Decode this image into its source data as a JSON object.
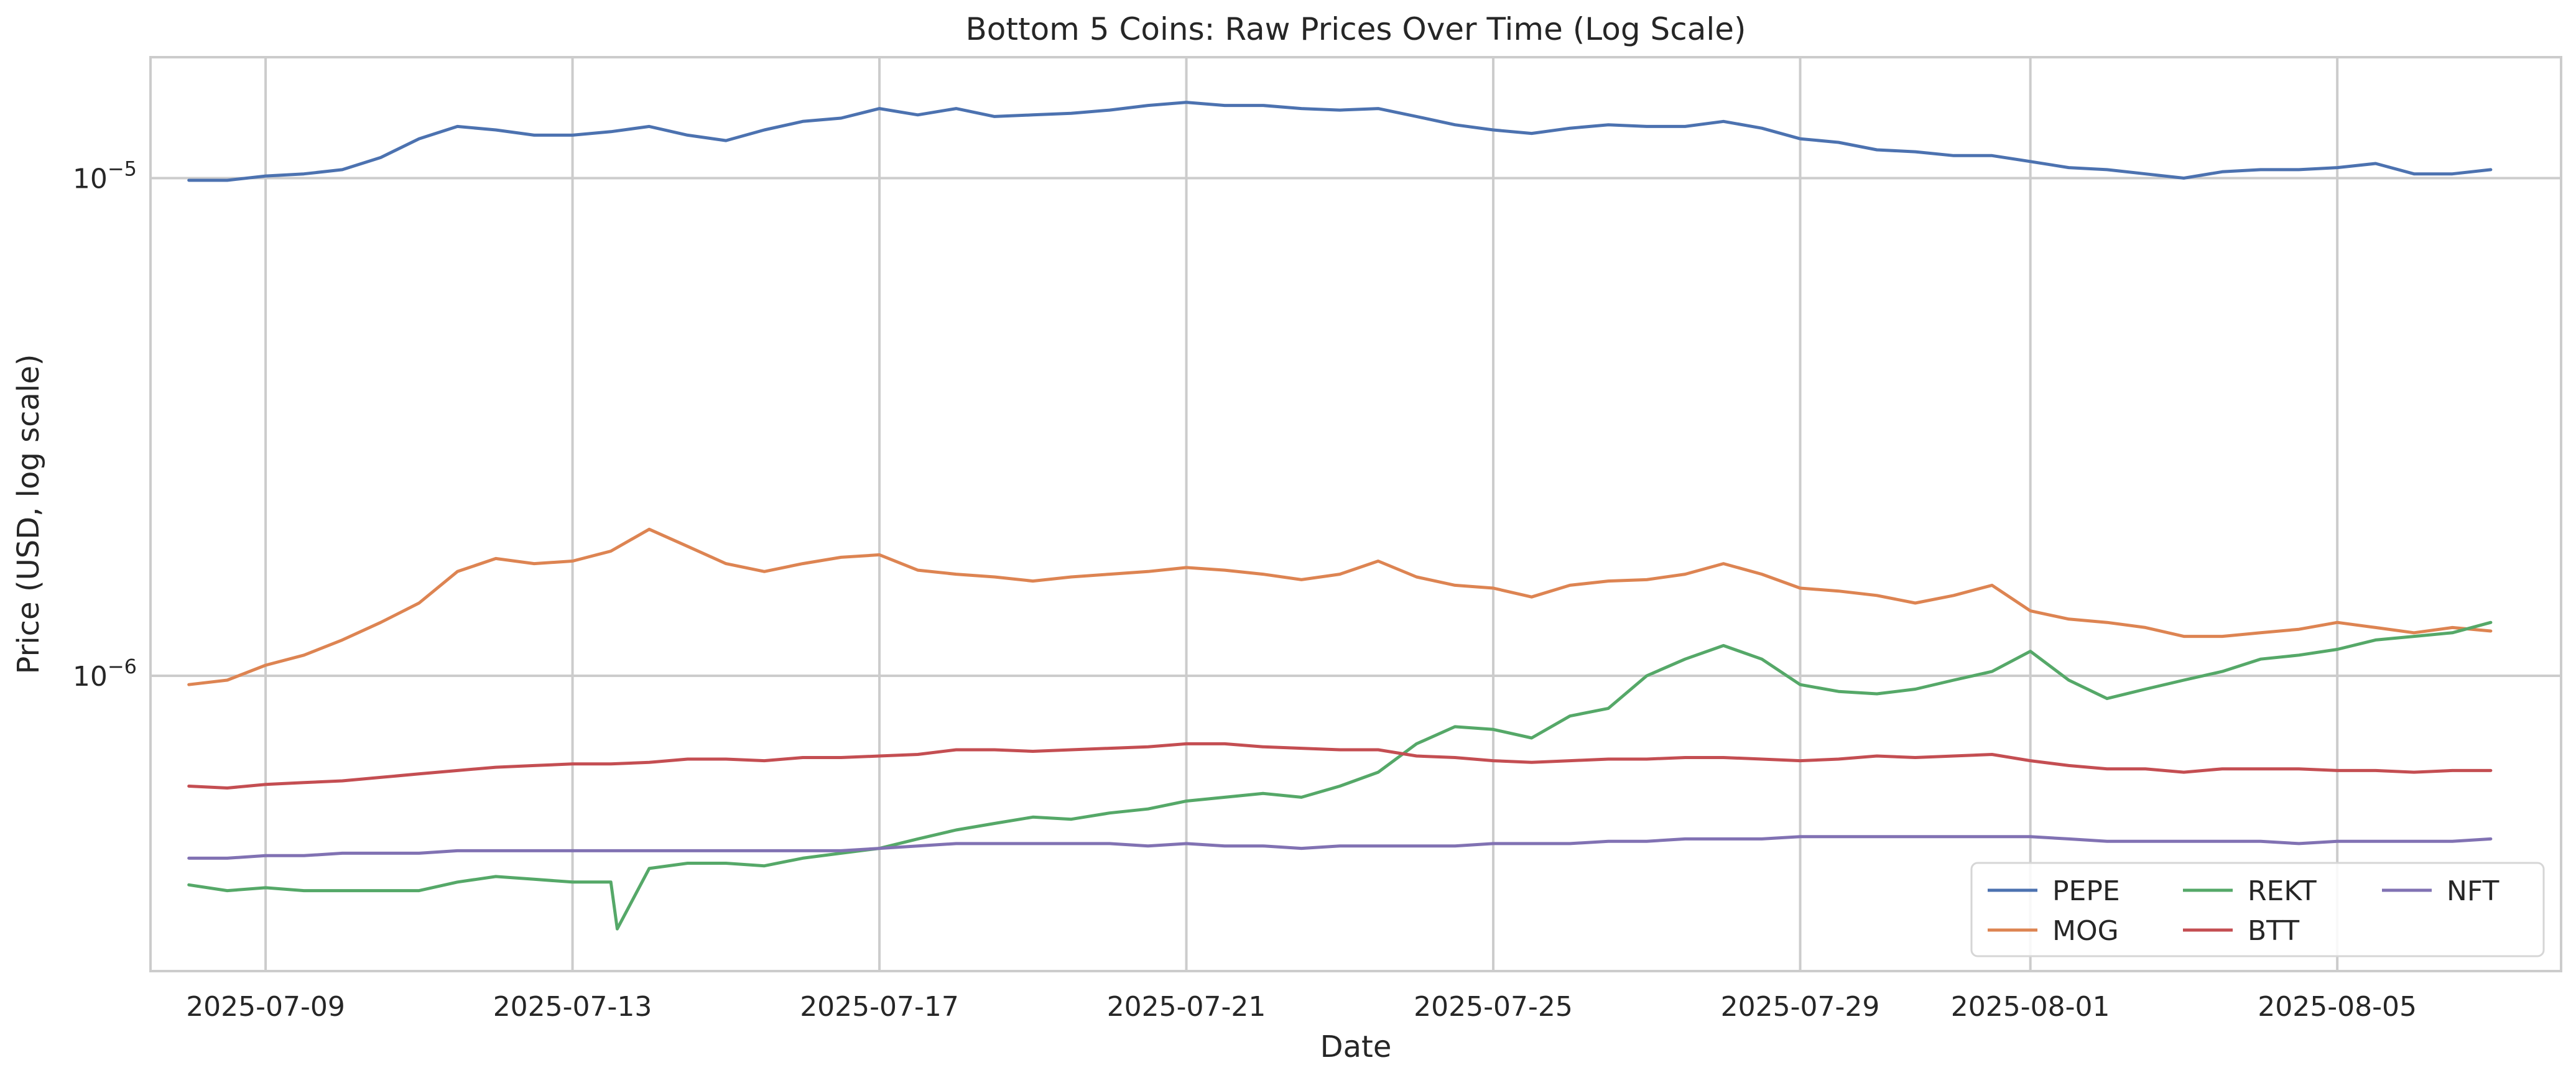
{
  "chart_data": {
    "type": "line",
    "title": "Bottom 5 Coins: Raw Prices Over Time (Log Scale)",
    "xlabel": "Date",
    "ylabel": "Price (USD, log scale)",
    "y_scale": "log",
    "ylim": [
      2.55e-07,
      1.75e-05
    ],
    "xlim": [
      "2025-07-07T12:00",
      "2025-08-07T22:00"
    ],
    "grid": true,
    "legend_position": "lower-right",
    "legend_columns": 3,
    "x_ticks": [
      {
        "date": "2025-07-09",
        "label": "2025-07-09"
      },
      {
        "date": "2025-07-13",
        "label": "2025-07-13"
      },
      {
        "date": "2025-07-17",
        "label": "2025-07-17"
      },
      {
        "date": "2025-07-21",
        "label": "2025-07-21"
      },
      {
        "date": "2025-07-25",
        "label": "2025-07-25"
      },
      {
        "date": "2025-07-29",
        "label": "2025-07-29"
      },
      {
        "date": "2025-08-01",
        "label": "2025-08-01"
      },
      {
        "date": "2025-08-05",
        "label": "2025-08-05"
      }
    ],
    "y_ticks": [
      {
        "value": 1e-05,
        "base": "10",
        "exponent": "−5"
      },
      {
        "value": 1e-06,
        "base": "10",
        "exponent": "−6"
      }
    ],
    "series": [
      {
        "name": "PEPE",
        "color": "#4c72b0",
        "x": [
          "2025-07-08",
          "2025-07-08T12:00",
          "2025-07-09",
          "2025-07-09T12:00",
          "2025-07-10",
          "2025-07-10T12:00",
          "2025-07-11",
          "2025-07-11T12:00",
          "2025-07-12",
          "2025-07-12T12:00",
          "2025-07-13",
          "2025-07-13T12:00",
          "2025-07-14",
          "2025-07-14T12:00",
          "2025-07-15",
          "2025-07-15T12:00",
          "2025-07-16",
          "2025-07-16T12:00",
          "2025-07-17",
          "2025-07-17T12:00",
          "2025-07-18",
          "2025-07-18T12:00",
          "2025-07-19",
          "2025-07-19T12:00",
          "2025-07-20",
          "2025-07-20T12:00",
          "2025-07-21",
          "2025-07-21T12:00",
          "2025-07-22",
          "2025-07-22T12:00",
          "2025-07-23",
          "2025-07-23T12:00",
          "2025-07-24",
          "2025-07-24T12:00",
          "2025-07-25",
          "2025-07-25T12:00",
          "2025-07-26",
          "2025-07-26T12:00",
          "2025-07-27",
          "2025-07-27T12:00",
          "2025-07-28",
          "2025-07-28T12:00",
          "2025-07-29",
          "2025-07-29T12:00",
          "2025-07-30",
          "2025-07-30T12:00",
          "2025-07-31",
          "2025-07-31T12:00",
          "2025-08-01",
          "2025-08-01T12:00",
          "2025-08-02",
          "2025-08-02T12:00",
          "2025-08-03",
          "2025-08-03T12:00",
          "2025-08-04",
          "2025-08-04T12:00",
          "2025-08-05",
          "2025-08-05T12:00",
          "2025-08-06",
          "2025-08-06T12:00",
          "2025-08-07"
        ],
        "values": [
          9.9e-06,
          9.9e-06,
          1.01e-05,
          1.02e-05,
          1.04e-05,
          1.1e-05,
          1.2e-05,
          1.27e-05,
          1.25e-05,
          1.22e-05,
          1.22e-05,
          1.24e-05,
          1.27e-05,
          1.22e-05,
          1.19e-05,
          1.25e-05,
          1.3e-05,
          1.32e-05,
          1.38e-05,
          1.34e-05,
          1.38e-05,
          1.33e-05,
          1.34e-05,
          1.35e-05,
          1.37e-05,
          1.4e-05,
          1.42e-05,
          1.4e-05,
          1.4e-05,
          1.38e-05,
          1.37e-05,
          1.38e-05,
          1.33e-05,
          1.28e-05,
          1.25e-05,
          1.23e-05,
          1.26e-05,
          1.28e-05,
          1.27e-05,
          1.27e-05,
          1.3e-05,
          1.26e-05,
          1.2e-05,
          1.18e-05,
          1.14e-05,
          1.13e-05,
          1.11e-05,
          1.11e-05,
          1.08e-05,
          1.05e-05,
          1.04e-05,
          1.02e-05,
          1e-05,
          1.03e-05,
          1.04e-05,
          1.04e-05,
          1.05e-05,
          1.07e-05,
          1.02e-05,
          1.02e-05,
          1.04e-05
        ]
      },
      {
        "name": "MOG",
        "color": "#dd8452",
        "x": [
          "2025-07-08",
          "2025-07-08T12:00",
          "2025-07-09",
          "2025-07-09T12:00",
          "2025-07-10",
          "2025-07-10T12:00",
          "2025-07-11",
          "2025-07-11T12:00",
          "2025-07-12",
          "2025-07-12T12:00",
          "2025-07-13",
          "2025-07-13T12:00",
          "2025-07-14",
          "2025-07-14T12:00",
          "2025-07-15",
          "2025-07-15T12:00",
          "2025-07-16",
          "2025-07-16T12:00",
          "2025-07-17",
          "2025-07-17T12:00",
          "2025-07-18",
          "2025-07-18T12:00",
          "2025-07-19",
          "2025-07-19T12:00",
          "2025-07-20",
          "2025-07-20T12:00",
          "2025-07-21",
          "2025-07-21T12:00",
          "2025-07-22",
          "2025-07-22T12:00",
          "2025-07-23",
          "2025-07-23T12:00",
          "2025-07-24",
          "2025-07-24T12:00",
          "2025-07-25",
          "2025-07-25T12:00",
          "2025-07-26",
          "2025-07-26T12:00",
          "2025-07-27",
          "2025-07-27T12:00",
          "2025-07-28",
          "2025-07-28T12:00",
          "2025-07-29",
          "2025-07-29T12:00",
          "2025-07-30",
          "2025-07-30T12:00",
          "2025-07-31",
          "2025-07-31T12:00",
          "2025-08-01",
          "2025-08-01T12:00",
          "2025-08-02",
          "2025-08-02T12:00",
          "2025-08-03",
          "2025-08-03T12:00",
          "2025-08-04",
          "2025-08-04T12:00",
          "2025-08-05",
          "2025-08-05T12:00",
          "2025-08-06",
          "2025-08-06T12:00",
          "2025-08-07"
        ],
        "values": [
          9.6e-07,
          9.8e-07,
          1.05e-06,
          1.1e-06,
          1.18e-06,
          1.28e-06,
          1.4e-06,
          1.62e-06,
          1.72e-06,
          1.68e-06,
          1.7e-06,
          1.78e-06,
          1.97e-06,
          1.82e-06,
          1.68e-06,
          1.62e-06,
          1.68e-06,
          1.73e-06,
          1.75e-06,
          1.63e-06,
          1.6e-06,
          1.58e-06,
          1.55e-06,
          1.58e-06,
          1.6e-06,
          1.62e-06,
          1.65e-06,
          1.63e-06,
          1.6e-06,
          1.56e-06,
          1.6e-06,
          1.7e-06,
          1.58e-06,
          1.52e-06,
          1.5e-06,
          1.44e-06,
          1.52e-06,
          1.55e-06,
          1.56e-06,
          1.6e-06,
          1.68e-06,
          1.6e-06,
          1.5e-06,
          1.48e-06,
          1.45e-06,
          1.4e-06,
          1.45e-06,
          1.52e-06,
          1.35e-06,
          1.3e-06,
          1.28e-06,
          1.25e-06,
          1.2e-06,
          1.2e-06,
          1.22e-06,
          1.24e-06,
          1.28e-06,
          1.25e-06,
          1.22e-06,
          1.25e-06,
          1.23e-06
        ]
      },
      {
        "name": "REKT",
        "color": "#55a868",
        "x": [
          "2025-07-08",
          "2025-07-08T12:00",
          "2025-07-09",
          "2025-07-09T12:00",
          "2025-07-10",
          "2025-07-10T12:00",
          "2025-07-11",
          "2025-07-11T12:00",
          "2025-07-12",
          "2025-07-12T12:00",
          "2025-07-13",
          "2025-07-13T12:00",
          "2025-07-13T14:00",
          "2025-07-14",
          "2025-07-14T12:00",
          "2025-07-15",
          "2025-07-15T12:00",
          "2025-07-16",
          "2025-07-16T12:00",
          "2025-07-17",
          "2025-07-17T12:00",
          "2025-07-18",
          "2025-07-18T12:00",
          "2025-07-19",
          "2025-07-19T12:00",
          "2025-07-20",
          "2025-07-20T12:00",
          "2025-07-21",
          "2025-07-21T12:00",
          "2025-07-22",
          "2025-07-22T12:00",
          "2025-07-23",
          "2025-07-23T12:00",
          "2025-07-24",
          "2025-07-24T12:00",
          "2025-07-25",
          "2025-07-25T12:00",
          "2025-07-26",
          "2025-07-26T12:00",
          "2025-07-27",
          "2025-07-27T12:00",
          "2025-07-28",
          "2025-07-28T12:00",
          "2025-07-29",
          "2025-07-29T12:00",
          "2025-07-30",
          "2025-07-30T12:00",
          "2025-07-31",
          "2025-07-31T12:00",
          "2025-08-01",
          "2025-08-01T12:00",
          "2025-08-02",
          "2025-08-02T12:00",
          "2025-08-03",
          "2025-08-03T12:00",
          "2025-08-04",
          "2025-08-04T12:00",
          "2025-08-05",
          "2025-08-05T12:00",
          "2025-08-06",
          "2025-08-06T12:00",
          "2025-08-07"
        ],
        "values": [
          3.8e-07,
          3.7e-07,
          3.75e-07,
          3.7e-07,
          3.7e-07,
          3.7e-07,
          3.7e-07,
          3.85e-07,
          3.95e-07,
          3.9e-07,
          3.85e-07,
          3.85e-07,
          3.1e-07,
          4.1e-07,
          4.2e-07,
          4.2e-07,
          4.15e-07,
          4.3e-07,
          4.4e-07,
          4.5e-07,
          4.7e-07,
          4.9e-07,
          5.05e-07,
          5.2e-07,
          5.15e-07,
          5.3e-07,
          5.4e-07,
          5.6e-07,
          5.7e-07,
          5.8e-07,
          5.7e-07,
          6e-07,
          6.4e-07,
          7.3e-07,
          7.9e-07,
          7.8e-07,
          7.5e-07,
          8.3e-07,
          8.6e-07,
          1e-06,
          1.08e-06,
          1.15e-06,
          1.08e-06,
          9.6e-07,
          9.3e-07,
          9.2e-07,
          9.4e-07,
          9.8e-07,
          1.02e-06,
          1.12e-06,
          9.8e-07,
          9e-07,
          9.4e-07,
          9.8e-07,
          1.02e-06,
          1.08e-06,
          1.1e-06,
          1.13e-06,
          1.18e-06,
          1.2e-06,
          1.22e-06,
          1.28e-06
        ]
      },
      {
        "name": "BTT",
        "color": "#c44e52",
        "x": [
          "2025-07-08",
          "2025-07-08T12:00",
          "2025-07-09",
          "2025-07-09T12:00",
          "2025-07-10",
          "2025-07-10T12:00",
          "2025-07-11",
          "2025-07-11T12:00",
          "2025-07-12",
          "2025-07-12T12:00",
          "2025-07-13",
          "2025-07-13T12:00",
          "2025-07-14",
          "2025-07-14T12:00",
          "2025-07-15",
          "2025-07-15T12:00",
          "2025-07-16",
          "2025-07-16T12:00",
          "2025-07-17",
          "2025-07-17T12:00",
          "2025-07-18",
          "2025-07-18T12:00",
          "2025-07-19",
          "2025-07-19T12:00",
          "2025-07-20",
          "2025-07-20T12:00",
          "2025-07-21",
          "2025-07-21T12:00",
          "2025-07-22",
          "2025-07-22T12:00",
          "2025-07-23",
          "2025-07-23T12:00",
          "2025-07-24",
          "2025-07-24T12:00",
          "2025-07-25",
          "2025-07-25T12:00",
          "2025-07-26",
          "2025-07-26T12:00",
          "2025-07-27",
          "2025-07-27T12:00",
          "2025-07-28",
          "2025-07-28T12:00",
          "2025-07-29",
          "2025-07-29T12:00",
          "2025-07-30",
          "2025-07-30T12:00",
          "2025-07-31",
          "2025-07-31T12:00",
          "2025-08-01",
          "2025-08-01T12:00",
          "2025-08-02",
          "2025-08-02T12:00",
          "2025-08-03",
          "2025-08-03T12:00",
          "2025-08-04",
          "2025-08-04T12:00",
          "2025-08-05",
          "2025-08-05T12:00",
          "2025-08-06",
          "2025-08-06T12:00",
          "2025-08-07"
        ],
        "values": [
          6e-07,
          5.95e-07,
          6.05e-07,
          6.1e-07,
          6.15e-07,
          6.25e-07,
          6.35e-07,
          6.45e-07,
          6.55e-07,
          6.6e-07,
          6.65e-07,
          6.65e-07,
          6.7e-07,
          6.8e-07,
          6.8e-07,
          6.75e-07,
          6.85e-07,
          6.85e-07,
          6.9e-07,
          6.95e-07,
          7.1e-07,
          7.1e-07,
          7.05e-07,
          7.1e-07,
          7.15e-07,
          7.2e-07,
          7.3e-07,
          7.3e-07,
          7.2e-07,
          7.15e-07,
          7.1e-07,
          7.1e-07,
          6.9e-07,
          6.85e-07,
          6.75e-07,
          6.7e-07,
          6.75e-07,
          6.8e-07,
          6.8e-07,
          6.85e-07,
          6.85e-07,
          6.8e-07,
          6.75e-07,
          6.8e-07,
          6.9e-07,
          6.85e-07,
          6.9e-07,
          6.95e-07,
          6.75e-07,
          6.6e-07,
          6.5e-07,
          6.5e-07,
          6.4e-07,
          6.5e-07,
          6.5e-07,
          6.5e-07,
          6.45e-07,
          6.45e-07,
          6.4e-07,
          6.45e-07,
          6.45e-07
        ]
      },
      {
        "name": "NFT",
        "color": "#8172b3",
        "x": [
          "2025-07-08",
          "2025-07-08T12:00",
          "2025-07-09",
          "2025-07-09T12:00",
          "2025-07-10",
          "2025-07-10T12:00",
          "2025-07-11",
          "2025-07-11T12:00",
          "2025-07-12",
          "2025-07-12T12:00",
          "2025-07-13",
          "2025-07-13T12:00",
          "2025-07-14",
          "2025-07-14T12:00",
          "2025-07-15",
          "2025-07-15T12:00",
          "2025-07-16",
          "2025-07-16T12:00",
          "2025-07-17",
          "2025-07-17T12:00",
          "2025-07-18",
          "2025-07-18T12:00",
          "2025-07-19",
          "2025-07-19T12:00",
          "2025-07-20",
          "2025-07-20T12:00",
          "2025-07-21",
          "2025-07-21T12:00",
          "2025-07-22",
          "2025-07-22T12:00",
          "2025-07-23",
          "2025-07-23T12:00",
          "2025-07-24",
          "2025-07-24T12:00",
          "2025-07-25",
          "2025-07-25T12:00",
          "2025-07-26",
          "2025-07-26T12:00",
          "2025-07-27",
          "2025-07-27T12:00",
          "2025-07-28",
          "2025-07-28T12:00",
          "2025-07-29",
          "2025-07-29T12:00",
          "2025-07-30",
          "2025-07-30T12:00",
          "2025-07-31",
          "2025-07-31T12:00",
          "2025-08-01",
          "2025-08-01T12:00",
          "2025-08-02",
          "2025-08-02T12:00",
          "2025-08-03",
          "2025-08-03T12:00",
          "2025-08-04",
          "2025-08-04T12:00",
          "2025-08-05",
          "2025-08-05T12:00",
          "2025-08-06",
          "2025-08-06T12:00",
          "2025-08-07"
        ],
        "values": [
          4.3e-07,
          4.3e-07,
          4.35e-07,
          4.35e-07,
          4.4e-07,
          4.4e-07,
          4.4e-07,
          4.45e-07,
          4.45e-07,
          4.45e-07,
          4.45e-07,
          4.45e-07,
          4.45e-07,
          4.45e-07,
          4.45e-07,
          4.45e-07,
          4.45e-07,
          4.45e-07,
          4.5e-07,
          4.55e-07,
          4.6e-07,
          4.6e-07,
          4.6e-07,
          4.6e-07,
          4.6e-07,
          4.55e-07,
          4.6e-07,
          4.55e-07,
          4.55e-07,
          4.5e-07,
          4.55e-07,
          4.55e-07,
          4.55e-07,
          4.55e-07,
          4.6e-07,
          4.6e-07,
          4.6e-07,
          4.65e-07,
          4.65e-07,
          4.7e-07,
          4.7e-07,
          4.7e-07,
          4.75e-07,
          4.75e-07,
          4.75e-07,
          4.75e-07,
          4.75e-07,
          4.75e-07,
          4.75e-07,
          4.7e-07,
          4.65e-07,
          4.65e-07,
          4.65e-07,
          4.65e-07,
          4.65e-07,
          4.6e-07,
          4.65e-07,
          4.65e-07,
          4.65e-07,
          4.65e-07,
          4.7e-07
        ]
      }
    ]
  }
}
